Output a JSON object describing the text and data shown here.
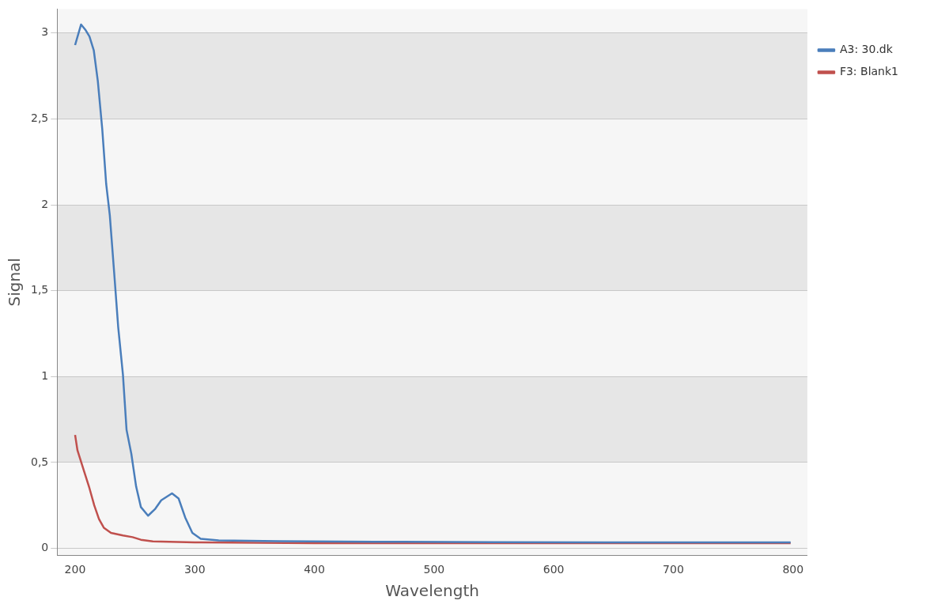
{
  "chart_data": {
    "type": "line",
    "xlabel": "Wavelength",
    "ylabel": "Signal",
    "xlim": [
      185,
      812
    ],
    "xticks": [
      200,
      300,
      400,
      500,
      600,
      700,
      800
    ],
    "ylim": [
      -0.04,
      3.14
    ],
    "yticks": [
      0,
      {
        "value": 0.5,
        "label": "0,5"
      },
      1,
      {
        "value": 1.5,
        "label": "1,5"
      },
      2,
      {
        "value": 2.5,
        "label": "2,5"
      },
      3
    ],
    "grid": "y",
    "legend": "top right",
    "marker": "none",
    "line_style": "solid",
    "series": [
      {
        "name": "A3: 30.dk",
        "color": "#4a7ebb",
        "x": [
          200,
          205,
          208.5,
          212,
          215.6,
          219,
          222.7,
          226,
          229,
          232.6,
          236,
          240,
          243,
          247,
          251,
          255,
          261,
          267,
          272,
          281,
          286.5,
          292,
          298,
          305,
          320,
          370,
          450,
          550,
          650,
          750,
          798
        ],
        "values": [
          2.93,
          3.05,
          3.02,
          2.98,
          2.9,
          2.72,
          2.44,
          2.12,
          1.94,
          1.61,
          1.29,
          1.01,
          0.69,
          0.55,
          0.36,
          0.24,
          0.19,
          0.23,
          0.28,
          0.32,
          0.29,
          0.18,
          0.09,
          0.055,
          0.046,
          0.042,
          0.038,
          0.036,
          0.035,
          0.035,
          0.035
        ]
      },
      {
        "name": "F3: Blank1",
        "color": "#c0504d",
        "x": [
          200,
          202,
          207,
          212,
          216,
          220,
          224,
          230,
          240,
          248,
          255,
          265,
          300,
          400,
          600,
          798
        ],
        "values": [
          0.66,
          0.57,
          0.46,
          0.35,
          0.25,
          0.17,
          0.12,
          0.09,
          0.075,
          0.065,
          0.05,
          0.04,
          0.035,
          0.03,
          0.03,
          0.03
        ]
      }
    ]
  }
}
